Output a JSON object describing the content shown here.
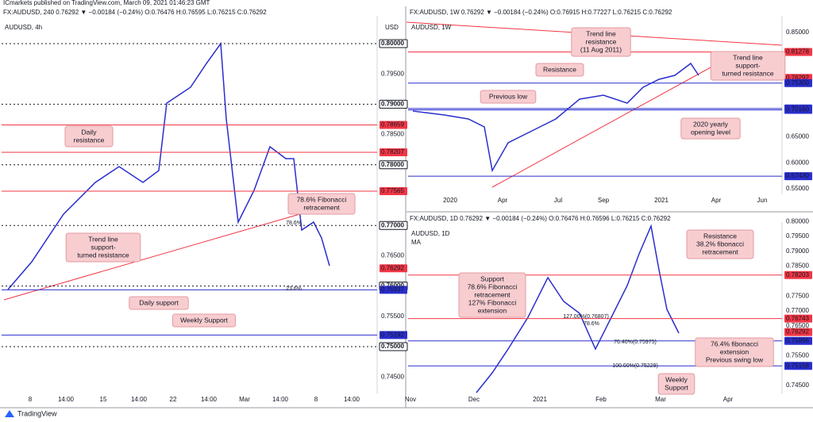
{
  "header": "ICmarkets published on TradingView.com, March 09, 2021 01:46:23 GMT",
  "footer": "TradingView",
  "panels": [
    {
      "info": "FX:AUDUSD, 240 0.76292 ▼ −0.00184 (−0.24%) O:0.76476 H:0.76595 L:0.76215 C:0.76292",
      "title": "AUDUSD, 4h",
      "currency": "USD",
      "price_labels": [
        {
          "value": 0.8,
          "label": "0.80000",
          "style": "boxed"
        },
        {
          "value": 0.795,
          "label": "0.79500",
          "style": "plain"
        },
        {
          "value": 0.79,
          "label": "0.79000",
          "style": "boxed"
        },
        {
          "value": 0.78659,
          "label": "0.78659",
          "style": "red"
        },
        {
          "value": 0.785,
          "label": "0.78500",
          "style": "plain"
        },
        {
          "value": 0.78207,
          "label": "0.78207",
          "style": "red"
        },
        {
          "value": 0.78,
          "label": "0.78000",
          "style": "boxed"
        },
        {
          "value": 0.77565,
          "label": "0.77565",
          "style": "red"
        },
        {
          "value": 0.77,
          "label": "0.77000",
          "style": "boxed"
        },
        {
          "value": 0.765,
          "label": "0.76500",
          "style": "plain"
        },
        {
          "value": 0.76292,
          "label": "0.76292",
          "style": "last"
        },
        {
          "value": 0.76,
          "label": "0.76000",
          "style": "boxed"
        },
        {
          "value": 0.75937,
          "label": "0.75937",
          "style": "blue"
        },
        {
          "value": 0.755,
          "label": "0.75500",
          "style": "plain"
        },
        {
          "value": 0.75192,
          "label": "0.75192",
          "style": "blue"
        },
        {
          "value": 0.75,
          "label": "0.75000",
          "style": "boxed"
        },
        {
          "value": 0.745,
          "label": "0.74500",
          "style": "plain"
        }
      ],
      "time_labels": [
        "8",
        "14:00",
        "15",
        "14:00",
        "22",
        "14:00",
        "Mar",
        "14:00",
        "8",
        "14:00"
      ],
      "annotations": [
        {
          "lines": [
            "Daily",
            "resistance"
          ]
        },
        {
          "lines": [
            "78.6% Fibonacci",
            "retracement"
          ]
        },
        {
          "lines": [
            "Trend line",
            "support-",
            "turned resistance"
          ]
        },
        {
          "lines": [
            "Daily support"
          ]
        },
        {
          "lines": [
            "Weekly Support"
          ]
        }
      ],
      "small_labels": [
        "78.6%",
        "23.6%"
      ]
    },
    {
      "info": "FX:AUDUSD, 1W 0.76292 ▼ −0.00184 (−0.24%) O:0.76915 H:0.77227 L:0.76215 C:0.76292",
      "title": "AUDUSD, 1W",
      "price_labels": [
        {
          "value": 0.85,
          "label": "0.85000",
          "style": "plain"
        },
        {
          "value": 0.81278,
          "label": "0.81278",
          "style": "red"
        },
        {
          "value": 0.76292,
          "label": "0.76292",
          "style": "last"
        },
        {
          "value": 0.753,
          "label": "0.75300",
          "style": "blue"
        },
        {
          "value": 0.7042,
          "label": "0.70420",
          "style": "blue"
        },
        {
          "value": 0.7016,
          "label": "0.70160",
          "style": "blue"
        },
        {
          "value": 0.65,
          "label": "0.65000",
          "style": "plain"
        },
        {
          "value": 0.6,
          "label": "0.60000",
          "style": "plain"
        },
        {
          "value": 0.5743,
          "label": "0.57430",
          "style": "blue"
        },
        {
          "value": 0.55,
          "label": "0.55000",
          "style": "plain"
        }
      ],
      "time_labels": [
        "2020",
        "Apr",
        "Jul",
        "Sep",
        "2021",
        "Apr",
        "Jun"
      ],
      "annotations": [
        {
          "lines": [
            "Trend line",
            "resistance",
            "(11 Aug 2011)"
          ]
        },
        {
          "lines": [
            "Resistance"
          ]
        },
        {
          "lines": [
            "Trend line",
            "support-",
            "turned resistance"
          ]
        },
        {
          "lines": [
            "Previous low"
          ]
        },
        {
          "lines": [
            "2020 yearly",
            "opening level"
          ]
        }
      ],
      "small_labels": []
    },
    {
      "info": "FX:AUDUSD, 1D 0.76292 ▼ −0.00184 (−0.24%) O:0.76476 H:0.76596 L:0.76215 C:0.76292",
      "title": "AUDUSD, 1D",
      "indicator": "MA",
      "price_labels": [
        {
          "value": 0.8,
          "label": "0.80000",
          "style": "plain"
        },
        {
          "value": 0.795,
          "label": "0.79500",
          "style": "plain"
        },
        {
          "value": 0.79,
          "label": "0.79000",
          "style": "plain"
        },
        {
          "value": 0.785,
          "label": "0.78500",
          "style": "plain"
        },
        {
          "value": 0.78203,
          "label": "0.78203",
          "style": "red"
        },
        {
          "value": 0.775,
          "label": "0.77500",
          "style": "plain"
        },
        {
          "value": 0.77,
          "label": "0.77000",
          "style": "plain"
        },
        {
          "value": 0.76743,
          "label": "0.76743",
          "style": "red"
        },
        {
          "value": 0.765,
          "label": "0.76500",
          "style": "plain"
        },
        {
          "value": 0.76292,
          "label": "0.76292",
          "style": "last"
        },
        {
          "value": 0.75996,
          "label": "0.75996",
          "style": "blue"
        },
        {
          "value": 0.755,
          "label": "0.75500",
          "style": "plain"
        },
        {
          "value": 0.75158,
          "label": "0.75158",
          "style": "blue"
        },
        {
          "value": 0.745,
          "label": "0.74500",
          "style": "plain"
        }
      ],
      "time_labels": [
        "Nov",
        "Dec",
        "2021",
        "Feb",
        "Mar",
        "Apr"
      ],
      "annotations": [
        {
          "lines": [
            "Resistance",
            "38.2% fibonacci",
            "retracement"
          ]
        },
        {
          "lines": [
            "Support",
            "78.6% Fibonacci",
            "retracement",
            "127% Fibonacci",
            "extension"
          ]
        },
        {
          "lines": [
            "76.4% fibonacci",
            "extension",
            "Previous swing low"
          ]
        },
        {
          "lines": [
            "Weekly",
            "Support"
          ]
        }
      ],
      "small_labels": [
        "127.00%(0.76807)",
        "78.6%",
        "76.40%(0.75975)",
        "100.00%(0.75229)"
      ]
    }
  ]
}
